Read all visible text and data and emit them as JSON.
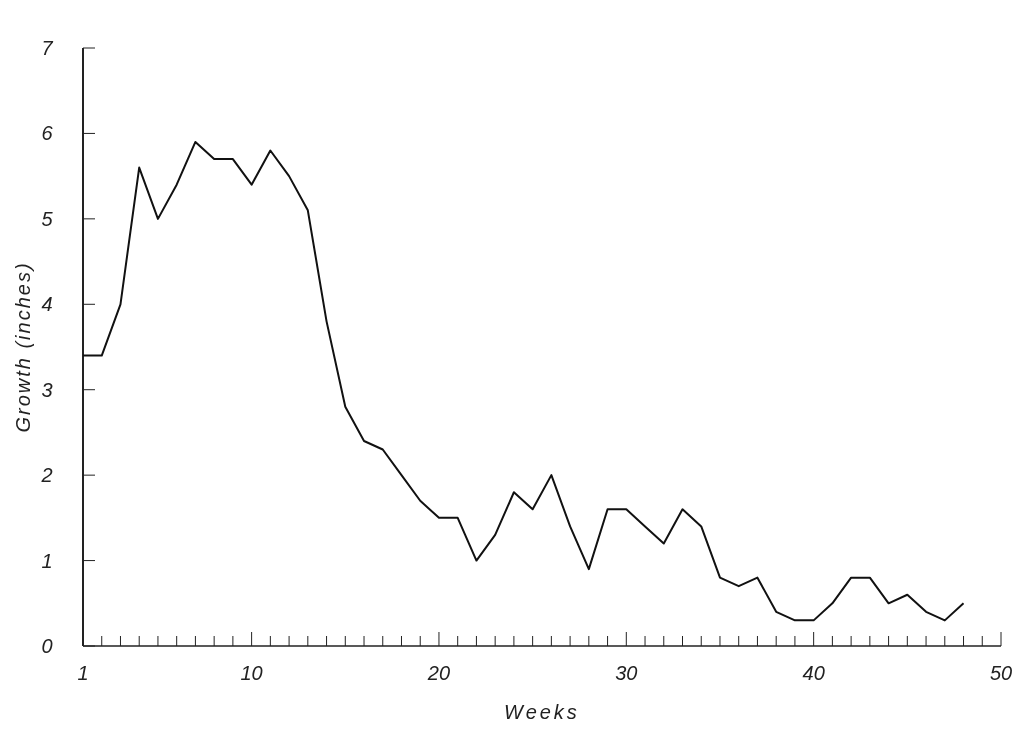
{
  "chart_data": {
    "type": "line",
    "xlabel": "Weeks",
    "ylabel": "Growth (inches)",
    "x": [
      1,
      2,
      3,
      4,
      5,
      6,
      7,
      8,
      9,
      10,
      11,
      12,
      13,
      14,
      15,
      16,
      17,
      18,
      19,
      20,
      21,
      22,
      23,
      24,
      25,
      26,
      27,
      28,
      29,
      30,
      31,
      32,
      33,
      34,
      35,
      36,
      37,
      38,
      39,
      40,
      41,
      42,
      43,
      44,
      45,
      46,
      47,
      48
    ],
    "series": [
      {
        "color": "#111111",
        "values": [
          3.4,
          3.4,
          4.0,
          5.6,
          5.0,
          5.4,
          5.9,
          5.7,
          5.7,
          5.4,
          5.8,
          5.5,
          5.1,
          3.8,
          2.8,
          2.4,
          2.3,
          2.0,
          1.7,
          1.5,
          1.5,
          1.0,
          1.3,
          1.8,
          1.6,
          2.0,
          1.4,
          0.9,
          1.6,
          1.6,
          1.4,
          1.2,
          1.6,
          1.4,
          0.8,
          0.7,
          0.8,
          0.4,
          0.3,
          0.3,
          0.5,
          0.8,
          0.8,
          0.5,
          0.6,
          0.4,
          0.3,
          0.5
        ]
      }
    ],
    "xlim": [
      1,
      50
    ],
    "xticks": [
      1,
      {
        "value": 2,
        "label": null
      },
      {
        "value": 3,
        "label": null
      },
      {
        "value": 4,
        "label": null
      },
      {
        "value": 5,
        "label": null
      },
      {
        "value": 6,
        "label": null
      },
      {
        "value": 7,
        "label": null
      },
      {
        "value": 8,
        "label": null
      },
      {
        "value": 9,
        "label": null
      },
      10,
      {
        "value": 11,
        "label": null
      },
      {
        "value": 12,
        "label": null
      },
      {
        "value": 13,
        "label": null
      },
      {
        "value": 14,
        "label": null
      },
      {
        "value": 15,
        "label": null
      },
      {
        "value": 16,
        "label": null
      },
      {
        "value": 17,
        "label": null
      },
      {
        "value": 18,
        "label": null
      },
      {
        "value": 19,
        "label": null
      },
      20,
      {
        "value": 21,
        "label": null
      },
      {
        "value": 22,
        "label": null
      },
      {
        "value": 23,
        "label": null
      },
      {
        "value": 24,
        "label": null
      },
      {
        "value": 25,
        "label": null
      },
      {
        "value": 26,
        "label": null
      },
      {
        "value": 27,
        "label": null
      },
      {
        "value": 28,
        "label": null
      },
      {
        "value": 29,
        "label": null
      },
      30,
      {
        "value": 31,
        "label": null
      },
      {
        "value": 32,
        "label": null
      },
      {
        "value": 33,
        "label": null
      },
      {
        "value": 34,
        "label": null
      },
      {
        "value": 35,
        "label": null
      },
      {
        "value": 36,
        "label": null
      },
      {
        "value": 37,
        "label": null
      },
      {
        "value": 38,
        "label": null
      },
      {
        "value": 39,
        "label": null
      },
      40,
      {
        "value": 41,
        "label": null
      },
      {
        "value": 42,
        "label": null
      },
      {
        "value": 43,
        "label": null
      },
      {
        "value": 44,
        "label": null
      },
      {
        "value": 45,
        "label": null
      },
      {
        "value": 46,
        "label": null
      },
      {
        "value": 47,
        "label": null
      },
      {
        "value": 48,
        "label": null
      },
      {
        "value": 49,
        "label": null
      },
      50
    ],
    "ylim": [
      0,
      7
    ],
    "yticks": [
      0,
      1,
      2,
      3,
      4,
      5,
      6,
      7
    ],
    "grid": false,
    "line_style": "solid"
  }
}
